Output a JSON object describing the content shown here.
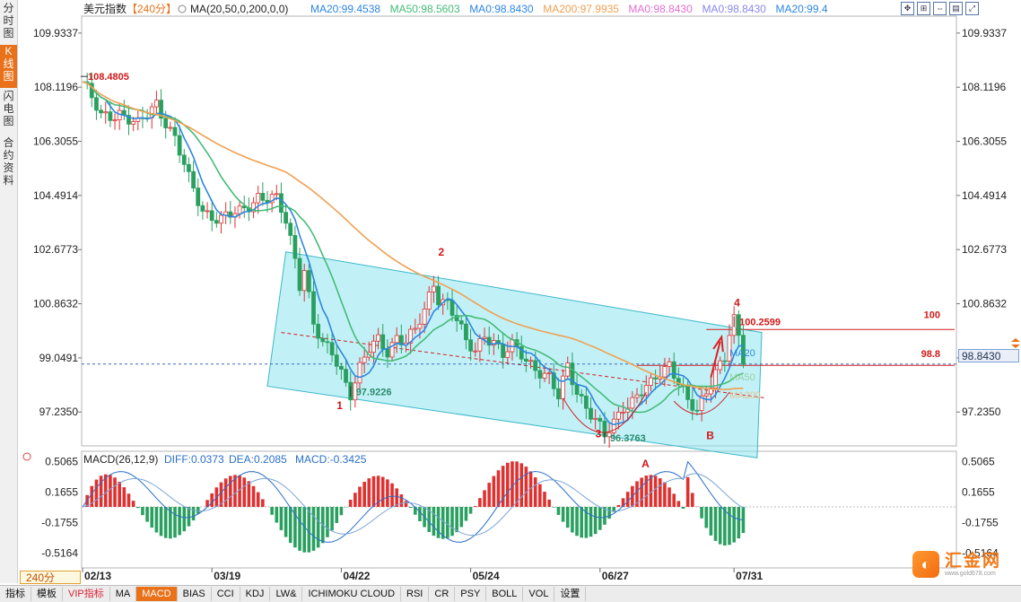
{
  "sidebar": {
    "tabs": [
      {
        "label": "分时图",
        "active": false
      },
      {
        "label": "K线图",
        "active": true
      },
      {
        "label": "闪电图",
        "active": false
      },
      {
        "label": "合约资料",
        "active": false
      }
    ]
  },
  "header": {
    "symbol": "美元指数",
    "period": "【240分】",
    "ma_params": "MA(20,50,0,200,0,0)",
    "ma_values": [
      {
        "label": "MA20:99.4538",
        "color": "#2e86de"
      },
      {
        "label": "MA50:98.5603",
        "color": "#44bb77"
      },
      {
        "label": "MA0:98.8430",
        "color": "#2e86de"
      },
      {
        "label": "MA200:97.9935",
        "color": "#f0a050"
      },
      {
        "label": "MA0:98.8430",
        "color": "#e070d0"
      },
      {
        "label": "MA0:98.8430",
        "color": "#8888ee"
      },
      {
        "label": "MA20:99.4",
        "color": "#2e86de"
      }
    ]
  },
  "macd": {
    "title": "MACD(26,12,9)",
    "diff": "DIFF:0.0373",
    "dea": "DEA:0.2085",
    "macd": "MACD:-0.3425"
  },
  "current_price_label": "98.8430",
  "period_selector": "240分",
  "logo": {
    "name": "汇金网",
    "url": "www.gold678.com"
  },
  "bottom_tabs": [
    "指标",
    "模板",
    "VIP指标",
    "MA",
    "MACD",
    "BIAS",
    "CCI",
    "KDJ",
    "LW&",
    "ICHIMOKU CLOUD",
    "RSI",
    "CR",
    "PSY",
    "BOLL",
    "VOL",
    "设置"
  ],
  "bottom_active": "MACD",
  "colors": {
    "up": "#e03030",
    "down": "#2aa060",
    "channel": "#8ee6f0",
    "ma20": "#2e86de",
    "ma50": "#44bb77",
    "ma200": "#f0a050",
    "accent": "#e8711a"
  },
  "chart_data": {
    "type": "candlestick",
    "symbol": "美元指数",
    "timeframe": "240分",
    "x_ticks": [
      "02/13",
      "03/19",
      "04/22",
      "05/24",
      "06/27",
      "07/31"
    ],
    "y_ticks": [
      109.9337,
      108.1196,
      106.3055,
      104.4914,
      102.6773,
      100.8632,
      99.0491,
      97.235
    ],
    "ylim": [
      96.1,
      110.5
    ],
    "close_path": [
      [
        0,
        108.3
      ],
      [
        4,
        107.1
      ],
      [
        8,
        107.3
      ],
      [
        12,
        106.8
      ],
      [
        16,
        107.6
      ],
      [
        20,
        106.4
      ],
      [
        23,
        105.0
      ],
      [
        26,
        104.0
      ],
      [
        30,
        103.7
      ],
      [
        34,
        103.9
      ],
      [
        38,
        104.5
      ],
      [
        42,
        104.3
      ],
      [
        44,
        103.6
      ],
      [
        46,
        102.4
      ],
      [
        47,
        101.6
      ],
      [
        48,
        102.1
      ],
      [
        50,
        100.2
      ],
      [
        52,
        99.4
      ],
      [
        54,
        99.2
      ],
      [
        56,
        98.6
      ],
      [
        58,
        97.92
      ],
      [
        60,
        98.7
      ],
      [
        62,
        99.3
      ],
      [
        64,
        99.6
      ],
      [
        66,
        99.3
      ],
      [
        68,
        99.8
      ],
      [
        70,
        99.6
      ],
      [
        72,
        99.9
      ],
      [
        74,
        100.6
      ],
      [
        76,
        101.6
      ],
      [
        77,
        101.1
      ],
      [
        79,
        100.9
      ],
      [
        81,
        100.3
      ],
      [
        83,
        99.5
      ],
      [
        85,
        99.3
      ],
      [
        87,
        99.9
      ],
      [
        89,
        99.6
      ],
      [
        91,
        99.1
      ],
      [
        93,
        99.4
      ],
      [
        95,
        99.2
      ],
      [
        97,
        98.9
      ],
      [
        99,
        98.6
      ],
      [
        101,
        98.3
      ],
      [
        103,
        97.7
      ],
      [
        105,
        98.8
      ],
      [
        107,
        98.0
      ],
      [
        109,
        97.4
      ],
      [
        111,
        96.9
      ],
      [
        113,
        96.38
      ],
      [
        115,
        96.9
      ],
      [
        117,
        97.5
      ],
      [
        119,
        97.6
      ],
      [
        121,
        97.9
      ],
      [
        123,
        98.1
      ],
      [
        125,
        98.6
      ],
      [
        127,
        98.9
      ],
      [
        129,
        98.3
      ],
      [
        131,
        97.5
      ],
      [
        133,
        97.2
      ],
      [
        135,
        97.9
      ],
      [
        137,
        98.7
      ],
      [
        139,
        99.1
      ],
      [
        140,
        99.9
      ],
      [
        141,
        100.26
      ],
      [
        142,
        99.6
      ],
      [
        143,
        98.84
      ]
    ],
    "moving_averages": [
      {
        "name": "MA20",
        "value": 99.4538
      },
      {
        "name": "MA50",
        "value": 98.5603
      },
      {
        "name": "MA200",
        "value": 97.9935
      }
    ],
    "macd": {
      "params": "26,12,9",
      "diff": 0.0373,
      "dea": 0.2085,
      "macd": -0.3425,
      "y_ticks": [
        0.5065,
        0.1655,
        -0.1755,
        -0.5164
      ],
      "ylim": [
        -0.68,
        0.62
      ]
    },
    "annotations": [
      {
        "text": "108.4805",
        "x": 0,
        "y": 108.4805
      },
      {
        "text": "97.9226",
        "x": 58,
        "y": 97.9226
      },
      {
        "text": "96.3763",
        "x": 113,
        "y": 96.3763
      },
      {
        "text": "100.2599",
        "x": 141,
        "y": 100.2599
      },
      {
        "text": "1",
        "x": 55,
        "y": 97.45
      },
      {
        "text": "2",
        "x": 77,
        "y": 102.6
      },
      {
        "text": "3",
        "x": 111,
        "y": 96.5
      },
      {
        "text": "4",
        "x": 141,
        "y": 100.9
      },
      {
        "text": "A",
        "x": 121,
        "y": 95.5
      },
      {
        "text": "B",
        "x": 135,
        "y": 96.45
      },
      {
        "text": "100",
        "x": 162,
        "y": 100.5
      },
      {
        "text": "98.8",
        "x": 162,
        "y": 99.2
      }
    ],
    "horizontal_levels": [
      100,
      98.8
    ],
    "channel": {
      "upper": [
        [
          44,
          102.6
        ],
        [
          147,
          99.9
        ]
      ],
      "lower": [
        [
          40,
          98.1
        ],
        [
          146,
          95.7
        ]
      ]
    },
    "midline": [
      [
        43,
        99.9
      ],
      [
        148,
        97.7
      ]
    ]
  }
}
